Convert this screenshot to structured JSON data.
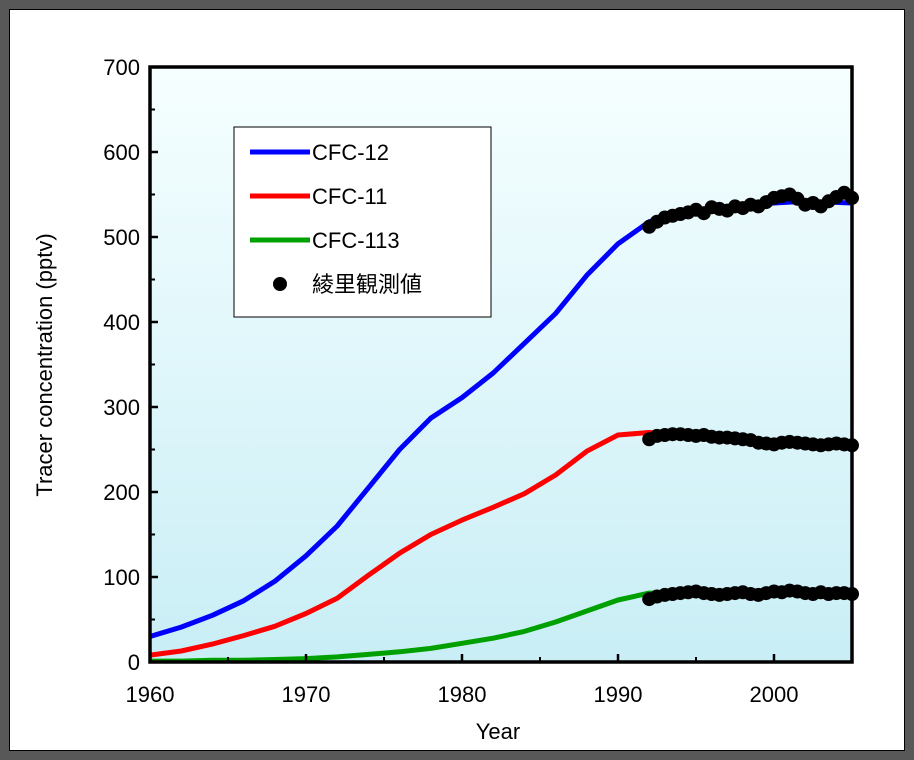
{
  "chart_data": {
    "type": "line",
    "xlabel": "Year",
    "ylabel": "Tracer concentration (pptv)",
    "xlim": [
      1960,
      2005
    ],
    "ylim": [
      0,
      700
    ],
    "xticks": [
      1960,
      1970,
      1980,
      1990,
      2000
    ],
    "yticks": [
      0,
      100,
      200,
      300,
      400,
      500,
      600,
      700
    ],
    "background_gradient": [
      "#f6ffff",
      "#c9eef6"
    ],
    "legend_position": "upper-left",
    "grid": false,
    "series": [
      {
        "name": "CFC-12",
        "kind": "line",
        "color": "#0000ff",
        "x": [
          1960,
          1962,
          1964,
          1966,
          1968,
          1970,
          1972,
          1974,
          1976,
          1978,
          1980,
          1982,
          1984,
          1986,
          1988,
          1990,
          1992,
          1994,
          1996,
          1998,
          2000,
          2002,
          2005
        ],
        "values": [
          30,
          41,
          55,
          72,
          95,
          125,
          160,
          205,
          250,
          287,
          311,
          340,
          375,
          410,
          455,
          492,
          518,
          527,
          533,
          537,
          540,
          542,
          540
        ]
      },
      {
        "name": "CFC-11",
        "kind": "line",
        "color": "#ff0000",
        "x": [
          1960,
          1962,
          1964,
          1966,
          1968,
          1970,
          1972,
          1974,
          1976,
          1978,
          1980,
          1982,
          1984,
          1986,
          1988,
          1990,
          1992,
          1994,
          1996,
          1998,
          2000,
          2002,
          2005
        ],
        "values": [
          8,
          13,
          21,
          31,
          42,
          57,
          75,
          102,
          128,
          150,
          167,
          182,
          198,
          220,
          248,
          267,
          270,
          267,
          263,
          259,
          257,
          256,
          254
        ]
      },
      {
        "name": "CFC-113",
        "kind": "line",
        "color": "#00a000",
        "x": [
          1960,
          1962,
          1964,
          1966,
          1968,
          1970,
          1972,
          1974,
          1976,
          1978,
          1980,
          1982,
          1984,
          1986,
          1988,
          1990,
          1992,
          1994,
          1996,
          1998,
          2000,
          2002,
          2005
        ],
        "values": [
          1,
          1,
          2,
          2,
          3,
          4,
          6,
          9,
          12,
          16,
          22,
          28,
          36,
          47,
          60,
          73,
          81,
          81,
          82,
          82,
          82,
          81,
          80
        ]
      },
      {
        "name": "綾里観測値",
        "kind": "scatter",
        "color": "#000000",
        "groups": [
          {
            "x": [
              1992,
              1992.5,
              1993,
              1993.5,
              1994,
              1994.5,
              1995,
              1995.5,
              1996,
              1996.5,
              1997,
              1997.5,
              1998,
              1998.5,
              1999,
              1999.5,
              2000,
              2000.5,
              2001,
              2001.5,
              2002,
              2002.5,
              2003,
              2003.5,
              2004,
              2004.5,
              2005
            ],
            "values": [
              512,
              518,
              523,
              525,
              527,
              529,
              532,
              528,
              535,
              533,
              531,
              536,
              534,
              538,
              536,
              541,
              546,
              548,
              550,
              545,
              538,
              540,
              536,
              542,
              547,
              552,
              546
            ]
          },
          {
            "x": [
              1992,
              1992.5,
              1993,
              1993.5,
              1994,
              1994.5,
              1995,
              1995.5,
              1996,
              1996.5,
              1997,
              1997.5,
              1998,
              1998.5,
              1999,
              1999.5,
              2000,
              2000.5,
              2001,
              2001.5,
              2002,
              2002.5,
              2003,
              2003.5,
              2004,
              2004.5,
              2005
            ],
            "values": [
              262,
              266,
              267,
              268,
              268,
              267,
              266,
              267,
              265,
              264,
              264,
              263,
              262,
              261,
              258,
              257,
              256,
              258,
              259,
              258,
              257,
              256,
              255,
              256,
              257,
              256,
              255
            ]
          },
          {
            "x": [
              1992,
              1992.5,
              1993,
              1993.5,
              1994,
              1994.5,
              1995,
              1995.5,
              1996,
              1996.5,
              1997,
              1997.5,
              1998,
              1998.5,
              1999,
              1999.5,
              2000,
              2000.5,
              2001,
              2001.5,
              2002,
              2002.5,
              2003,
              2003.5,
              2004,
              2004.5,
              2005
            ],
            "values": [
              74,
              77,
              79,
              80,
              81,
              82,
              83,
              81,
              80,
              79,
              80,
              81,
              82,
              80,
              79,
              81,
              83,
              82,
              84,
              83,
              81,
              80,
              82,
              80,
              81,
              81,
              80
            ]
          }
        ]
      }
    ]
  }
}
